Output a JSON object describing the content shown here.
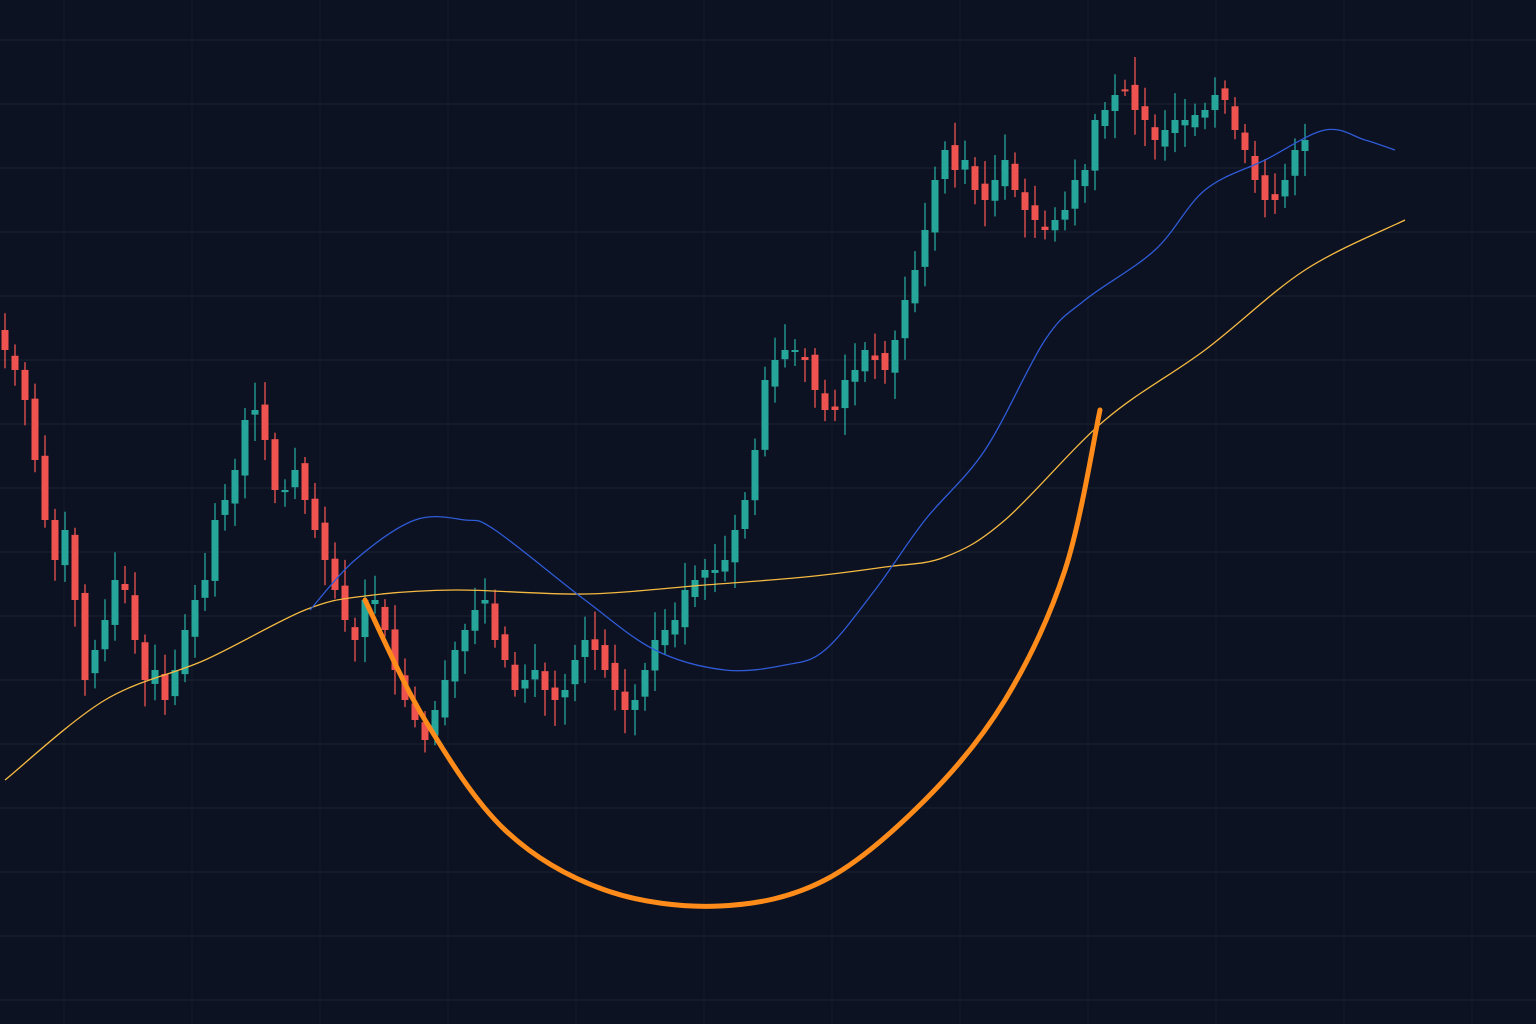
{
  "chart_data": {
    "type": "candlestick",
    "title": "",
    "xlabel": "",
    "ylabel": "",
    "grid": true,
    "ylim": [
      0,
      102
    ],
    "xlim": [
      0,
      153
    ],
    "colors": {
      "background": "#0c1221",
      "grid": "#1a2233",
      "up": "#26a69a",
      "down": "#ef5350",
      "ma_fast": "#2f5bd8",
      "ma_slow": "#f5b942",
      "cup": "#ff8c1a"
    },
    "closes": [
      67,
      65,
      62,
      56,
      50,
      46,
      49,
      42,
      34,
      37,
      40,
      44,
      43,
      38,
      34,
      35,
      32,
      35,
      39,
      42,
      44,
      50,
      52,
      55,
      60,
      61,
      58,
      53,
      53,
      55,
      52,
      49,
      46,
      43,
      40,
      38,
      42,
      42,
      39,
      35,
      32,
      30,
      28,
      31,
      34,
      37,
      39,
      41,
      42,
      38,
      36,
      33,
      34,
      35,
      33,
      32,
      33,
      36,
      38,
      37,
      35,
      33,
      31,
      32,
      35,
      38,
      39,
      40,
      43,
      44,
      45,
      45,
      46,
      49,
      52,
      57,
      64,
      66,
      67,
      67,
      66,
      63,
      61,
      61,
      64,
      65,
      67,
      66,
      65,
      68,
      72,
      75,
      79,
      84,
      87,
      85,
      86,
      83,
      82,
      84,
      86,
      83,
      81,
      80,
      79,
      80,
      81,
      84,
      85,
      90,
      91,
      92.5,
      93,
      91,
      90,
      88,
      89,
      90,
      90,
      90.5,
      91,
      92.5,
      92,
      89,
      87,
      84,
      82,
      82,
      84,
      87,
      88
    ],
    "series": [
      {
        "kind": "moving-average-fast",
        "points": [
          [
            30.5,
            41
          ],
          [
            35,
            46
          ],
          [
            41,
            50
          ],
          [
            46,
            50
          ],
          [
            49,
            49
          ],
          [
            58,
            42
          ],
          [
            65,
            37
          ],
          [
            72,
            35
          ],
          [
            78,
            35.5
          ],
          [
            82,
            37
          ],
          [
            87,
            43
          ],
          [
            92,
            50
          ],
          [
            98,
            57
          ],
          [
            104,
            68
          ],
          [
            108,
            72
          ],
          [
            115,
            77
          ],
          [
            120,
            83
          ],
          [
            126,
            86
          ],
          [
            132,
            89
          ],
          [
            136,
            88
          ],
          [
            139,
            87
          ]
        ]
      },
      {
        "kind": "moving-average-slow",
        "points": [
          [
            0,
            24
          ],
          [
            10,
            32
          ],
          [
            20,
            36
          ],
          [
            30,
            41
          ],
          [
            36,
            42.4
          ],
          [
            45,
            43
          ],
          [
            58,
            42.6
          ],
          [
            70,
            43.5
          ],
          [
            80,
            44.3
          ],
          [
            88,
            45.3
          ],
          [
            94,
            46.3
          ],
          [
            100,
            50
          ],
          [
            110,
            60
          ],
          [
            120,
            67
          ],
          [
            130,
            75
          ],
          [
            140,
            80
          ]
        ]
      }
    ],
    "annotations": [
      {
        "kind": "cup-arc",
        "points": [
          [
            36,
            42
          ],
          [
            42,
            30
          ],
          [
            50,
            19
          ],
          [
            60,
            13
          ],
          [
            71.5,
            11.4
          ],
          [
            82,
            14
          ],
          [
            92,
            22
          ],
          [
            100,
            32
          ],
          [
            106,
            45
          ],
          [
            109.5,
            61
          ]
        ]
      }
    ]
  }
}
